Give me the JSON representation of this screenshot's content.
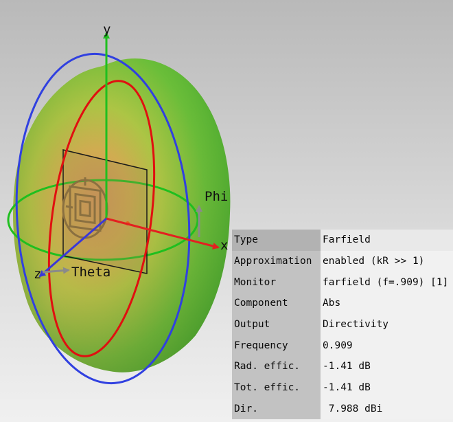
{
  "axes": {
    "x": "x",
    "y": "y",
    "z": "z",
    "phi": "Phi",
    "theta": "Theta"
  },
  "colors": {
    "background_top": "#bcbcbc",
    "background_bottom": "#f0f0f0",
    "x_axis": "#e32020",
    "y_axis": "#1fbf1f",
    "z_axis": "#3a38d8",
    "phi_ring": "#1fbf1f",
    "theta_ring_red": "#e01010",
    "theta_ring_blue": "#3040e0",
    "pattern_center": "#e8a050",
    "pattern_edge": "#55b834"
  },
  "info": [
    {
      "key": "Type",
      "value": "Farfield"
    },
    {
      "key": "Approximation",
      "value": "enabled (kR >> 1)"
    },
    {
      "key": "Monitor",
      "value": "farfield (f=.909) [1]"
    },
    {
      "key": "Component",
      "value": "Abs"
    },
    {
      "key": "Output",
      "value": "Directivity"
    },
    {
      "key": "Frequency",
      "value": "0.909"
    },
    {
      "key": "Rad. effic.",
      "value": "-1.41 dB"
    },
    {
      "key": "Tot. effic.",
      "value": "-1.41 dB"
    },
    {
      "key": "Dir.",
      "value": " 7.988 dBi"
    }
  ]
}
